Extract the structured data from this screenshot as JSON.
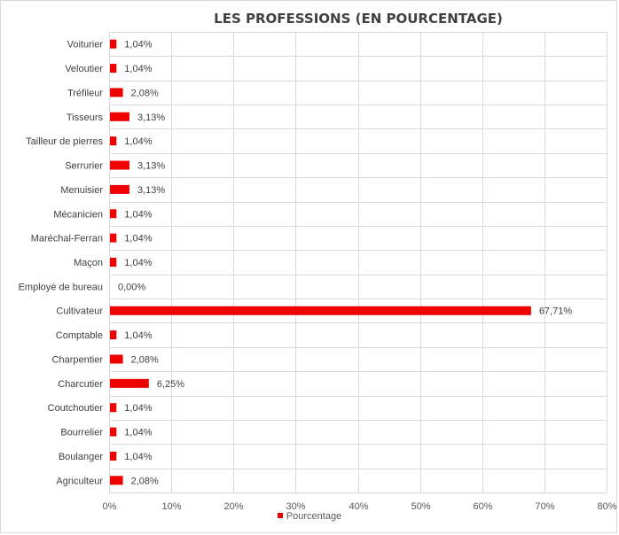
{
  "chart_data": {
    "type": "bar",
    "orientation": "horizontal",
    "title": "LES PROFESSIONS (EN POURCENTAGE)",
    "xlabel": "",
    "ylabel": "",
    "categories": [
      "Voiturier",
      "Veloutier",
      "Tréfileur",
      "Tisseurs",
      "Tailleur de pierres",
      "Serrurier",
      "Menuisier",
      "Mécanicien",
      "Maréchal-Ferran",
      "Maçon",
      "Employé de bureau",
      "Cultivateur",
      "Comptable",
      "Charpentier",
      "Charcutier",
      "Coutchoutier",
      "Bourrelier",
      "Boulanger",
      "Agriculteur"
    ],
    "series": [
      {
        "name": "Pourcentage",
        "values": [
          1.04,
          1.04,
          2.08,
          3.13,
          1.04,
          3.13,
          3.13,
          1.04,
          1.04,
          1.04,
          0.0,
          67.71,
          1.04,
          2.08,
          6.25,
          1.04,
          1.04,
          1.04,
          2.08
        ],
        "labels": [
          "1,04%",
          "1,04%",
          "2,08%",
          "3,13%",
          "1,04%",
          "3,13%",
          "3,13%",
          "1,04%",
          "1,04%",
          "1,04%",
          "0,00%",
          "67,71%",
          "1,04%",
          "2,08%",
          "6,25%",
          "1,04%",
          "1,04%",
          "1,04%",
          "2,08%"
        ]
      }
    ],
    "xlim": [
      0,
      80
    ],
    "xticks": [
      0,
      10,
      20,
      30,
      40,
      50,
      60,
      70,
      80
    ],
    "xtick_labels": [
      "0%",
      "10%",
      "20%",
      "30%",
      "40%",
      "50%",
      "60%",
      "70%",
      "80%"
    ],
    "grid": true,
    "legend": "bottom",
    "colors": {
      "bar": "#ee0000",
      "grid": "#d9d9d9",
      "text": "#404040"
    }
  }
}
